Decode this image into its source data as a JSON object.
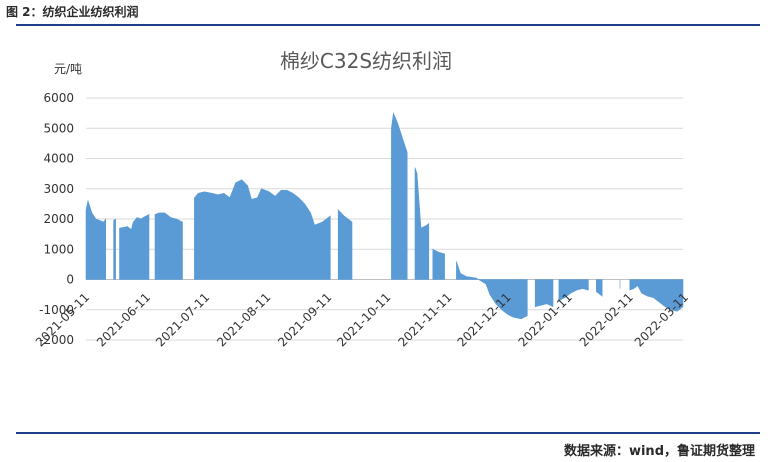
{
  "header": {
    "caption": "图 2：纺织企业纺织利润"
  },
  "footer": {
    "source": "数据来源：wind，鲁证期货整理"
  },
  "colors": {
    "series": "#5b9bd5",
    "rule": "#1f3c88",
    "grid": "#d9d9d9"
  },
  "chart_data": {
    "type": "area",
    "title": "棉纱C32S纺织利润",
    "ylabel": "元/吨",
    "ylim": [
      -2000,
      6000
    ],
    "yticks": [
      -2000,
      -1000,
      0,
      1000,
      2000,
      3000,
      4000,
      5000,
      6000
    ],
    "ytick_labels": [
      "-2000",
      "-1000",
      "0",
      "1000",
      "2000",
      "3000",
      "4000",
      "5000",
      "6000"
    ],
    "x_ticks": [
      "2021-05-11",
      "2021-06-11",
      "2021-07-11",
      "2021-08-11",
      "2021-09-11",
      "2021-10-11",
      "2021-11-11",
      "2021-12-11",
      "2022-01-11",
      "2022-02-11",
      "2022-03-11"
    ],
    "grid": true,
    "legend": "none",
    "series": [
      {
        "points": [
          [
            "2021-05-11",
            2300
          ],
          [
            "2021-05-12",
            2600
          ],
          [
            "2021-05-14",
            2200
          ],
          [
            "2021-05-16",
            2000
          ],
          [
            "2021-05-18",
            1950
          ],
          [
            "2021-05-20",
            1900
          ],
          [
            "2021-05-21",
            2000
          ],
          [
            "2021-05-22",
            null
          ],
          [
            "2021-05-25",
            1950
          ],
          [
            "2021-05-26",
            2000
          ],
          [
            "2021-05-27",
            null
          ],
          [
            "2021-05-28",
            1700
          ],
          [
            "2021-06-01",
            1750
          ],
          [
            "2021-06-03",
            1650
          ],
          [
            "2021-06-04",
            1900
          ],
          [
            "2021-06-06",
            2050
          ],
          [
            "2021-06-08",
            2000
          ],
          [
            "2021-06-09",
            2050
          ],
          [
            "2021-06-12",
            2150
          ],
          [
            "2021-06-13",
            null
          ],
          [
            "2021-06-15",
            2150
          ],
          [
            "2021-06-17",
            2200
          ],
          [
            "2021-06-20",
            2200
          ],
          [
            "2021-06-23",
            2050
          ],
          [
            "2021-06-26",
            2000
          ],
          [
            "2021-06-29",
            1900
          ],
          [
            "2021-06-30",
            null
          ],
          [
            "2021-07-05",
            2700
          ],
          [
            "2021-07-07",
            2850
          ],
          [
            "2021-07-10",
            2900
          ],
          [
            "2021-07-14",
            2850
          ],
          [
            "2021-07-17",
            2800
          ],
          [
            "2021-07-20",
            2850
          ],
          [
            "2021-07-23",
            2700
          ],
          [
            "2021-07-26",
            3200
          ],
          [
            "2021-07-29",
            3300
          ],
          [
            "2021-08-01",
            3100
          ],
          [
            "2021-08-03",
            2650
          ],
          [
            "2021-08-06",
            2700
          ],
          [
            "2021-08-08",
            3000
          ],
          [
            "2021-08-12",
            2900
          ],
          [
            "2021-08-15",
            2750
          ],
          [
            "2021-08-18",
            2950
          ],
          [
            "2021-08-21",
            2950
          ],
          [
            "2021-08-24",
            2850
          ],
          [
            "2021-08-27",
            2700
          ],
          [
            "2021-08-30",
            2500
          ],
          [
            "2021-09-02",
            2200
          ],
          [
            "2021-09-04",
            1800
          ],
          [
            "2021-09-08",
            1900
          ],
          [
            "2021-09-12",
            2100
          ],
          [
            "2021-09-13",
            null
          ],
          [
            "2021-09-16",
            2300
          ],
          [
            "2021-09-19",
            2100
          ],
          [
            "2021-09-23",
            1900
          ],
          [
            "2021-09-24",
            null
          ],
          [
            "2021-10-13",
            5000
          ],
          [
            "2021-10-14",
            5500
          ],
          [
            "2021-10-16",
            5200
          ],
          [
            "2021-10-19",
            4600
          ],
          [
            "2021-10-21",
            4200
          ],
          [
            "2021-10-22",
            null
          ],
          [
            "2021-10-25",
            3700
          ],
          [
            "2021-10-26",
            3500
          ],
          [
            "2021-10-28",
            1700
          ],
          [
            "2021-10-31",
            1800
          ],
          [
            "2021-11-01",
            1850
          ],
          [
            "2021-11-02",
            null
          ],
          [
            "2021-11-03",
            1000
          ],
          [
            "2021-11-06",
            900
          ],
          [
            "2021-11-09",
            850
          ],
          [
            "2021-11-10",
            null
          ],
          [
            "2021-11-15",
            600
          ],
          [
            "2021-11-17",
            200
          ],
          [
            "2021-11-20",
            100
          ],
          [
            "2021-11-25",
            50
          ],
          [
            "2021-11-30",
            -150
          ],
          [
            "2021-12-02",
            -500
          ],
          [
            "2021-12-05",
            -800
          ],
          [
            "2021-12-08",
            -1000
          ],
          [
            "2021-12-11",
            -1150
          ],
          [
            "2021-12-14",
            -1250
          ],
          [
            "2021-12-18",
            -1300
          ],
          [
            "2021-12-21",
            -1200
          ],
          [
            "2021-12-22",
            null
          ],
          [
            "2021-12-25",
            -900
          ],
          [
            "2021-12-28",
            -850
          ],
          [
            "2021-12-31",
            -800
          ],
          [
            "2022-01-03",
            -900
          ],
          [
            "2022-01-04",
            null
          ],
          [
            "2022-01-06",
            -700
          ],
          [
            "2022-01-09",
            -600
          ],
          [
            "2022-01-12",
            -450
          ],
          [
            "2022-01-15",
            -350
          ],
          [
            "2022-01-18",
            -300
          ],
          [
            "2022-01-21",
            -350
          ],
          [
            "2022-01-22",
            null
          ],
          [
            "2022-01-25",
            -400
          ],
          [
            "2022-01-28",
            -550
          ],
          [
            "2022-01-29",
            null
          ],
          [
            "2022-02-06",
            -300
          ],
          [
            "2022-02-07",
            null
          ],
          [
            "2022-02-11",
            -350
          ],
          [
            "2022-02-13",
            -300
          ],
          [
            "2022-02-15",
            -200
          ],
          [
            "2022-02-17",
            -450
          ],
          [
            "2022-02-20",
            -550
          ],
          [
            "2022-02-23",
            -600
          ],
          [
            "2022-02-26",
            -750
          ],
          [
            "2022-03-01",
            -900
          ],
          [
            "2022-03-04",
            -1000
          ],
          [
            "2022-03-07",
            -1050
          ],
          [
            "2022-03-10",
            -900
          ]
        ]
      }
    ]
  }
}
